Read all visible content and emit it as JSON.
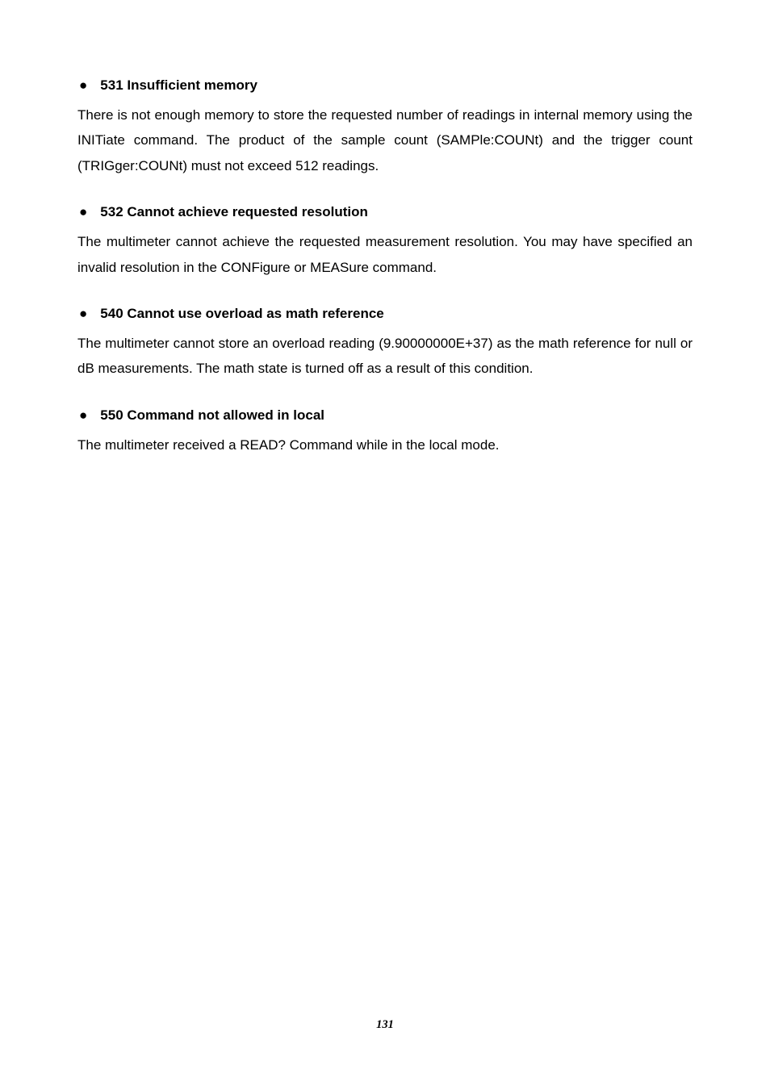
{
  "sections": [
    {
      "heading": "531 Insufficient memory",
      "body": "There is not enough memory to store the requested number of readings in internal memory using the INITiate command.  The product of the sample count (SAMPle:COUNt) and the trigger count (TRIGger:COUNt) must not exceed 512 readings."
    },
    {
      "heading": "532 Cannot achieve requested resolution",
      "body": "The multimeter cannot achieve the requested measurement resolution. You may have specified an invalid resolution in the CONFigure or MEASure command."
    },
    {
      "heading": "540 Cannot use overload as math reference",
      "body": "The multimeter cannot store an overload reading (9.90000000E+37) as the math reference for null or dB measurements.  The math state is turned off as a result of this condition."
    },
    {
      "heading": "550 Command not allowed in local",
      "body": "The multimeter received a READ? Command while in the local mode."
    }
  ],
  "page_number": "131",
  "bullet_glyph": "●"
}
